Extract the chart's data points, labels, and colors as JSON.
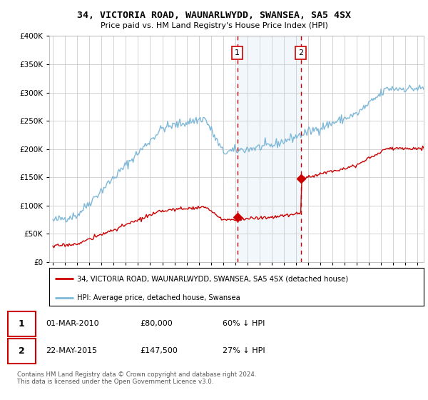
{
  "title": "34, VICTORIA ROAD, WAUNARLWYDD, SWANSEA, SA5 4SX",
  "subtitle": "Price paid vs. HM Land Registry's House Price Index (HPI)",
  "ylim": [
    0,
    400000
  ],
  "xlim_start": 1994.7,
  "xlim_end": 2025.5,
  "sale1_date": 2010.17,
  "sale1_price": 80000,
  "sale1_label": "1",
  "sale2_date": 2015.39,
  "sale2_price": 147500,
  "sale2_label": "2",
  "hpi_color": "#7fb8d8",
  "sale_color": "#cc0000",
  "dashed_line_color": "#cc0000",
  "shaded_color": "#cce0f0",
  "legend1": "34, VICTORIA ROAD, WAUNARLWYDD, SWANSEA, SA5 4SX (detached house)",
  "legend2": "HPI: Average price, detached house, Swansea",
  "table_row1": [
    "1",
    "01-MAR-2010",
    "£80,000",
    "60% ↓ HPI"
  ],
  "table_row2": [
    "2",
    "22-MAY-2015",
    "£147,500",
    "27% ↓ HPI"
  ],
  "footer": "Contains HM Land Registry data © Crown copyright and database right 2024.\nThis data is licensed under the Open Government Licence v3.0.",
  "yticks": [
    0,
    50000,
    100000,
    150000,
    200000,
    250000,
    300000,
    350000,
    400000
  ]
}
